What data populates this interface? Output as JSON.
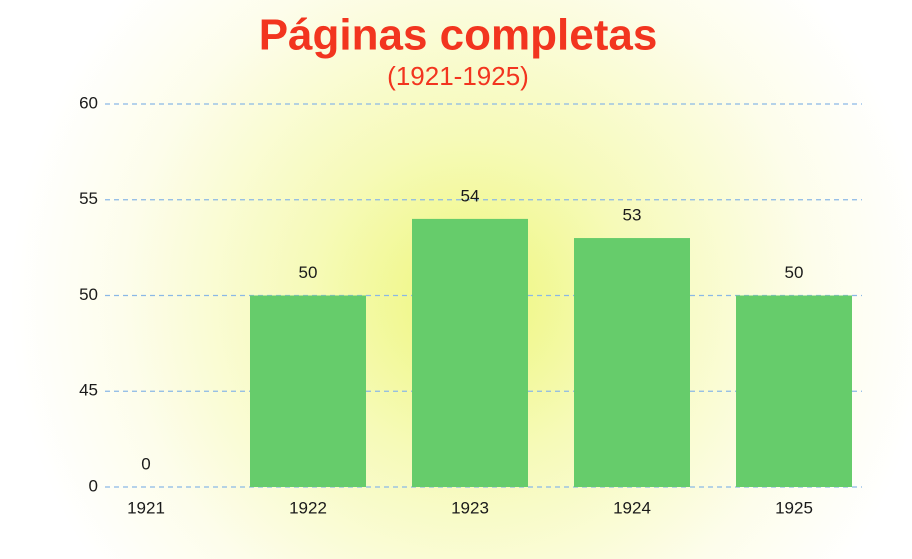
{
  "chart_data": {
    "type": "bar",
    "title": "Páginas completas",
    "subtitle": "(1921-1925)",
    "categories": [
      "1921",
      "1922",
      "1923",
      "1924",
      "1925"
    ],
    "values": [
      0,
      50,
      54,
      53,
      50
    ],
    "color": "#66cc6b",
    "ylim": [
      0,
      60
    ],
    "yticks": [
      0,
      45,
      50,
      55,
      60
    ],
    "axis_break": true,
    "grid": true
  }
}
